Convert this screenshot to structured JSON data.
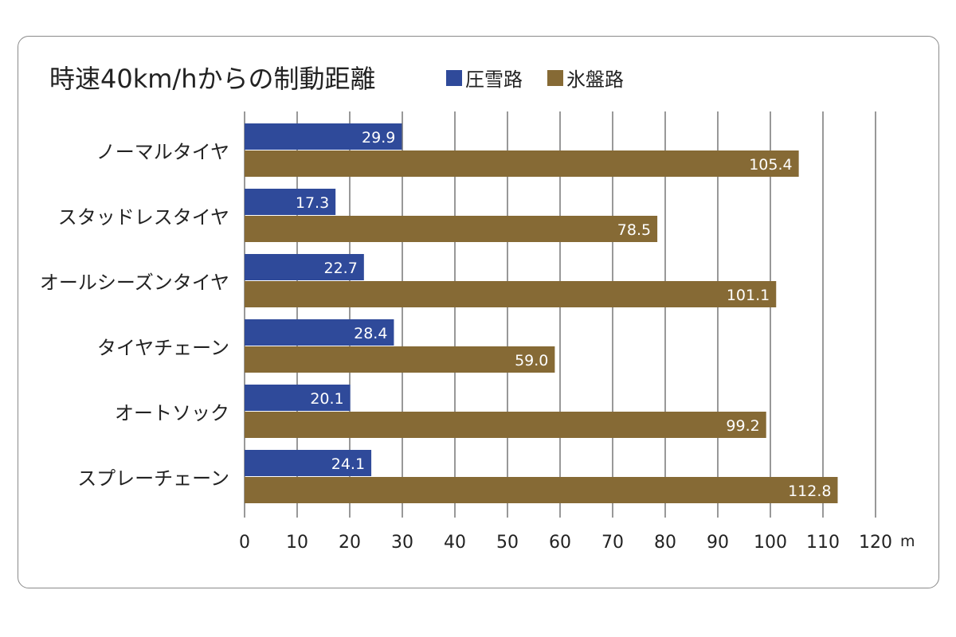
{
  "chart_data": {
    "type": "bar",
    "orientation": "horizontal",
    "title": "時速40km/hからの制動距離",
    "categories": [
      "ノーマルタイヤ",
      "スタッドレスタイヤ",
      "オールシーズンタイヤ",
      "タイヤチェーン",
      "オートソック",
      "スプレーチェーン"
    ],
    "series": [
      {
        "name": "圧雪路",
        "color": "#2f4a9a",
        "values": [
          29.9,
          17.3,
          22.7,
          28.4,
          20.1,
          24.1
        ],
        "labels": [
          "29.9",
          "17.3",
          "22.7",
          "28.4",
          "20.1",
          "24.1"
        ]
      },
      {
        "name": "氷盤路",
        "color": "#866a35",
        "values": [
          105.4,
          78.5,
          101.1,
          59.0,
          99.2,
          112.8
        ],
        "labels": [
          "105.4",
          "78.5",
          "101.1",
          "59.0",
          "99.2",
          "112.8"
        ]
      }
    ],
    "xlim": [
      0,
      120
    ],
    "xticks": [
      "0",
      "10",
      "20",
      "30",
      "40",
      "50",
      "60",
      "70",
      "80",
      "90",
      "100",
      "110",
      "120"
    ],
    "xunit": "m",
    "grid": "vertical",
    "legend": "top"
  }
}
